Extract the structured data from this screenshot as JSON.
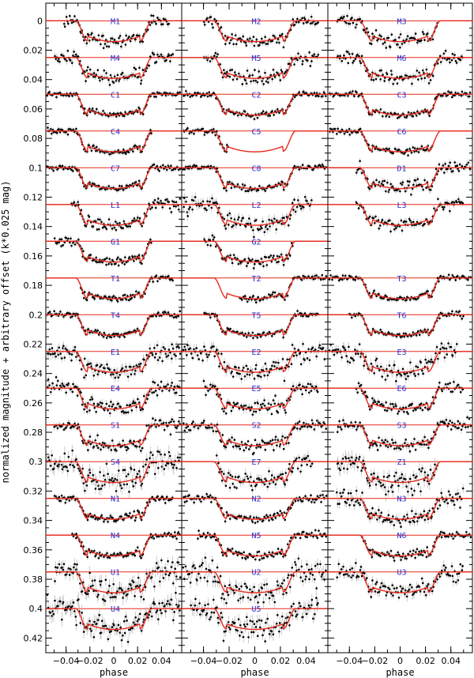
{
  "chart_data": {
    "type": "scatter",
    "xlabel": "phase",
    "ylabel": "normalized magnitude + arbitrary offset (k*0.025 mag)",
    "xlim": [
      -0.057,
      0.057
    ],
    "ylim": [
      0.43,
      -0.012
    ],
    "x_ticks": [
      "−0.04",
      "−0.02",
      "0",
      "0.02",
      "0.04"
    ],
    "x_tick_values": [
      -0.04,
      -0.02,
      0,
      0.02,
      0.04
    ],
    "y_ticks": [
      "0",
      "0.02",
      "0.04",
      "0.06",
      "0.08",
      "0.1",
      "0.12",
      "0.14",
      "0.16",
      "0.18",
      "0.2",
      "0.22",
      "0.24",
      "0.26",
      "0.28",
      "0.3",
      "0.32",
      "0.34",
      "0.36",
      "0.38",
      "0.4",
      "0.42"
    ],
    "y_tick_values": [
      0,
      0.02,
      0.04,
      0.06,
      0.08,
      0.1,
      0.12,
      0.14,
      0.16,
      0.18,
      0.2,
      0.22,
      0.24,
      0.26,
      0.28,
      0.3,
      0.32,
      0.34,
      0.36,
      0.38,
      0.4,
      0.42
    ],
    "transit_depth": 0.0135,
    "ingress_start": -0.032,
    "ingress_end": -0.022,
    "egress_start": 0.022,
    "egress_end": 0.032,
    "model_color": "#e8291c",
    "point_color": "#000000",
    "errorbar_color": "#a8a8a8",
    "label_color": "#2a2ac8",
    "panels": [
      {
        "curves": [
          {
            "label": "M1",
            "offset": 0,
            "xmin": -0.042,
            "xmax": 0.047,
            "noise": 0.002
          },
          {
            "label": "M4",
            "offset": 0.025,
            "xmin": -0.05,
            "xmax": 0.05,
            "noise": 0.0022
          },
          {
            "label": "C1",
            "offset": 0.05,
            "xmin": -0.056,
            "xmax": 0.056,
            "noise": 0.001
          },
          {
            "label": "C4",
            "offset": 0.075,
            "xmin": -0.056,
            "xmax": 0.032,
            "noise": 0.001
          },
          {
            "label": "C7",
            "offset": 0.1,
            "xmin": -0.056,
            "xmax": 0.056,
            "noise": 0.001
          },
          {
            "label": "L1",
            "offset": 0.125,
            "xmin": -0.036,
            "xmax": 0.056,
            "noise": 0.0018
          },
          {
            "label": "G1",
            "offset": 0.15,
            "xmin": -0.05,
            "xmax": 0.032,
            "noise": 0.0015
          },
          {
            "label": "T1",
            "offset": 0.175,
            "xmin": -0.028,
            "xmax": 0.05,
            "noise": 0.0012
          },
          {
            "label": "T4",
            "offset": 0.2,
            "xmin": -0.056,
            "xmax": 0.056,
            "noise": 0.001
          },
          {
            "label": "E1",
            "offset": 0.225,
            "xmin": -0.056,
            "xmax": 0.056,
            "noise": 0.003
          },
          {
            "label": "E4",
            "offset": 0.25,
            "xmin": -0.056,
            "xmax": 0.056,
            "noise": 0.0025
          },
          {
            "label": "S1",
            "offset": 0.275,
            "xmin": -0.05,
            "xmax": 0.056,
            "noise": 0.0022
          },
          {
            "label": "S4",
            "offset": 0.3,
            "xmin": -0.056,
            "xmax": 0.056,
            "noise": 0.004
          },
          {
            "label": "N1",
            "offset": 0.325,
            "xmin": -0.05,
            "xmax": 0.05,
            "noise": 0.0015
          },
          {
            "label": "N4",
            "offset": 0.35,
            "xmin": -0.035,
            "xmax": 0.056,
            "noise": 0.0012
          },
          {
            "label": "U1",
            "offset": 0.375,
            "xmin": -0.05,
            "xmax": 0.056,
            "noise": 0.004
          },
          {
            "label": "U4",
            "offset": 0.4,
            "xmin": -0.056,
            "xmax": 0.056,
            "noise": 0.0045
          }
        ]
      },
      {
        "curves": [
          {
            "label": "M2",
            "offset": 0,
            "xmin": -0.04,
            "xmax": 0.05,
            "noise": 0.002
          },
          {
            "label": "M5",
            "offset": 0.025,
            "xmin": -0.04,
            "xmax": 0.05,
            "noise": 0.0022
          },
          {
            "label": "C2",
            "offset": 0.05,
            "xmin": -0.056,
            "xmax": 0.056,
            "noise": 0.001
          },
          {
            "label": "C5",
            "offset": 0.075,
            "xmin": -0.056,
            "xmax": -0.02,
            "noise": 0.0012
          },
          {
            "label": "C8",
            "offset": 0.1,
            "xmin": -0.056,
            "xmax": 0.056,
            "noise": 0.001
          },
          {
            "label": "L2",
            "offset": 0.125,
            "xmin": -0.056,
            "xmax": 0.045,
            "noise": 0.003
          },
          {
            "label": "G2",
            "offset": 0.15,
            "xmin": -0.04,
            "xmax": 0.03,
            "noise": 0.002
          },
          {
            "label": "T2",
            "offset": 0.175,
            "xmin": -0.012,
            "xmax": 0.056,
            "noise": 0.0012
          },
          {
            "label": "T5",
            "offset": 0.2,
            "xmin": -0.04,
            "xmax": 0.05,
            "noise": 0.001
          },
          {
            "label": "E2",
            "offset": 0.225,
            "xmin": -0.056,
            "xmax": 0.056,
            "noise": 0.003
          },
          {
            "label": "E5",
            "offset": 0.25,
            "xmin": -0.04,
            "xmax": 0.05,
            "noise": 0.0025
          },
          {
            "label": "S2",
            "offset": 0.275,
            "xmin": -0.056,
            "xmax": 0.056,
            "noise": 0.0022
          },
          {
            "label": "E7",
            "offset": 0.3,
            "xmin": -0.03,
            "xmax": 0.045,
            "noise": 0.003
          },
          {
            "label": "N2",
            "offset": 0.325,
            "xmin": -0.056,
            "xmax": 0.056,
            "noise": 0.0015
          },
          {
            "label": "N5",
            "offset": 0.35,
            "xmin": -0.045,
            "xmax": 0.056,
            "noise": 0.0015
          },
          {
            "label": "U2",
            "offset": 0.375,
            "xmin": -0.056,
            "xmax": 0.056,
            "noise": 0.004
          },
          {
            "label": "U5",
            "offset": 0.4,
            "xmin": -0.05,
            "xmax": 0.05,
            "noise": 0.004
          }
        ]
      },
      {
        "curves": [
          {
            "label": "M3",
            "offset": 0,
            "xmin": -0.05,
            "xmax": 0.03,
            "noise": 0.0022
          },
          {
            "label": "M6",
            "offset": 0.025,
            "xmin": -0.05,
            "xmax": 0.05,
            "noise": 0.0022
          },
          {
            "label": "C3",
            "offset": 0.05,
            "xmin": -0.056,
            "xmax": 0.056,
            "noise": 0.001
          },
          {
            "label": "C6",
            "offset": 0.075,
            "xmin": -0.056,
            "xmax": 0.026,
            "noise": 0.001
          },
          {
            "label": "D1",
            "offset": 0.1,
            "xmin": -0.035,
            "xmax": 0.056,
            "noise": 0.0022
          },
          {
            "label": "L3",
            "offset": 0.125,
            "xmin": -0.035,
            "xmax": 0.05,
            "noise": 0.0022
          },
          {
            "label": "T3",
            "offset": 0.175,
            "xmin": -0.056,
            "xmax": 0.056,
            "noise": 0.001
          },
          {
            "label": "T6",
            "offset": 0.2,
            "xmin": -0.04,
            "xmax": 0.05,
            "noise": 0.001
          },
          {
            "label": "E3",
            "offset": 0.225,
            "xmin": -0.056,
            "xmax": 0.045,
            "noise": 0.003
          },
          {
            "label": "E6",
            "offset": 0.25,
            "xmin": -0.035,
            "xmax": 0.05,
            "noise": 0.002
          },
          {
            "label": "S3",
            "offset": 0.275,
            "xmin": -0.05,
            "xmax": 0.056,
            "noise": 0.0022
          },
          {
            "label": "Z1",
            "offset": 0.3,
            "xmin": -0.05,
            "xmax": 0.03,
            "noise": 0.004
          },
          {
            "label": "N3",
            "offset": 0.325,
            "xmin": -0.05,
            "xmax": 0.05,
            "noise": 0.003
          },
          {
            "label": "N6",
            "offset": 0.35,
            "xmin": -0.03,
            "xmax": 0.056,
            "noise": 0.0015
          },
          {
            "label": "U3",
            "offset": 0.375,
            "xmin": -0.05,
            "xmax": 0.05,
            "noise": 0.003
          }
        ]
      }
    ]
  }
}
